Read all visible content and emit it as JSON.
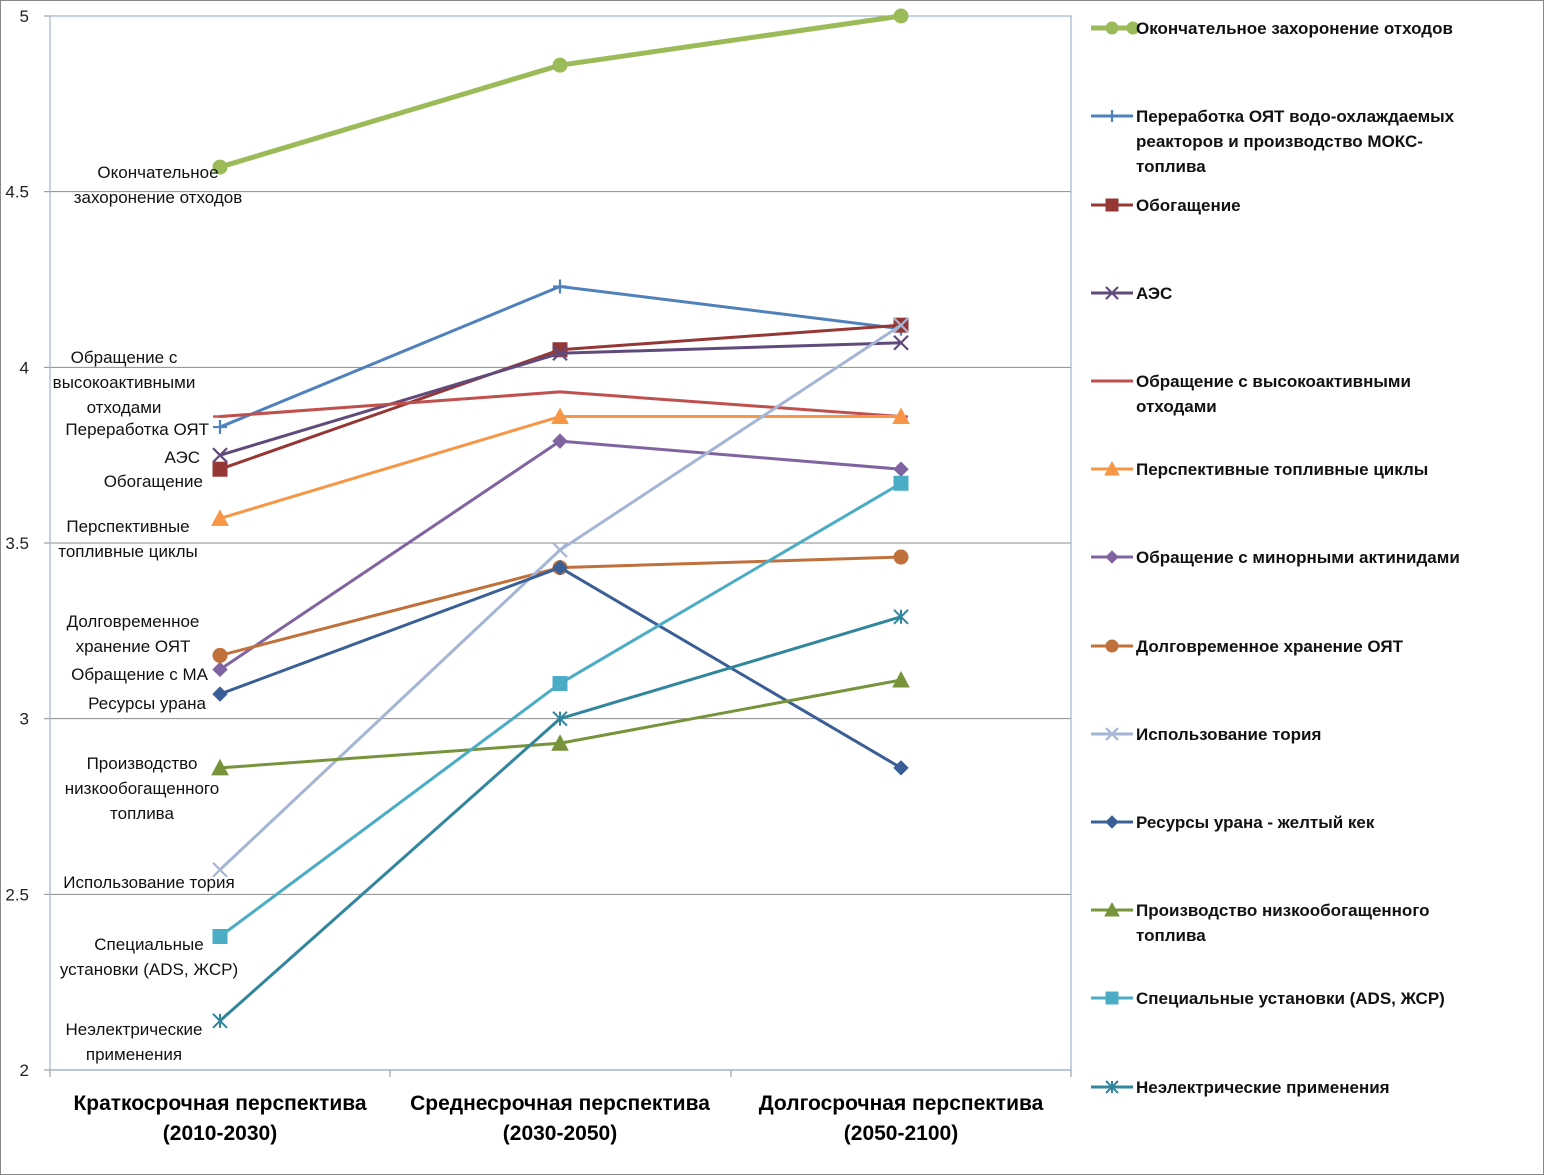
{
  "chart_data": {
    "type": "line",
    "categories": [
      [
        "Краткосрочная перспектива",
        "(2010-2030)"
      ],
      [
        "Среднесрочная перспектива",
        "(2030-2050)"
      ],
      [
        "Долгосрочная перспектива",
        "(2050-2100)"
      ]
    ],
    "ylim": [
      2,
      5
    ],
    "yticks": [
      "2",
      "2.5",
      "3",
      "3.5",
      "4",
      "4.5",
      "5"
    ],
    "grid": true,
    "legend_position": "right",
    "series": [
      {
        "name": [
          "Окончательное захоронение отходов"
        ],
        "values": [
          4.57,
          4.86,
          5.0
        ],
        "color": "#9BBB59",
        "marker": "circle",
        "width": 5
      },
      {
        "name": [
          "Переработка ОЯТ водо-охлаждаемых",
          "реакторов и производство МОКС-",
          "топлива"
        ],
        "values": [
          3.83,
          4.23,
          4.11
        ],
        "color": "#4F81BD",
        "marker": "plus",
        "width": 3
      },
      {
        "name": [
          "Обогащение"
        ],
        "values": [
          3.71,
          4.05,
          4.12
        ],
        "color": "#953735",
        "marker": "square",
        "width": 3
      },
      {
        "name": [
          "АЭС"
        ],
        "values": [
          3.75,
          4.04,
          4.07
        ],
        "color": "#604A7B",
        "marker": "x",
        "width": 3
      },
      {
        "name": [
          "Обращение с высокоактивными",
          "отходами"
        ],
        "values": [
          3.86,
          3.93,
          3.86
        ],
        "color": "#C0504D",
        "marker": "dash",
        "width": 3
      },
      {
        "name": [
          "Перспективные топливные циклы"
        ],
        "values": [
          3.57,
          3.86,
          3.86
        ],
        "color": "#F79646",
        "marker": "triangle",
        "width": 3
      },
      {
        "name": [
          "Обращение с минорными актинидами"
        ],
        "values": [
          3.14,
          3.79,
          3.71
        ],
        "color": "#8064A2",
        "marker": "diamond",
        "width": 3
      },
      {
        "name": [
          "Долговременное хранение ОЯТ"
        ],
        "values": [
          3.18,
          3.43,
          3.46
        ],
        "color": "#C0703A",
        "marker": "circle",
        "width": 3
      },
      {
        "name": [
          "Использование тория"
        ],
        "values": [
          2.57,
          3.48,
          4.12
        ],
        "color": "#A5B5D6",
        "marker": "x",
        "width": 3
      },
      {
        "name": [
          "Ресурсы урана - желтый кек"
        ],
        "values": [
          3.07,
          3.43,
          2.86
        ],
        "color": "#3A5F97",
        "marker": "diamond",
        "width": 3
      },
      {
        "name": [
          "Производство низкообогащенного",
          "топлива"
        ],
        "values": [
          2.86,
          2.93,
          3.11
        ],
        "color": "#77933C",
        "marker": "triangle",
        "width": 3
      },
      {
        "name": [
          "Специальные установки (ADS, ЖСР)"
        ],
        "values": [
          2.38,
          3.1,
          3.67
        ],
        "color": "#4BACC6",
        "marker": "square",
        "width": 3
      },
      {
        "name": [
          "Неэлектрические применения"
        ],
        "values": [
          2.14,
          3.0,
          3.29
        ],
        "color": "#31859C",
        "marker": "asterisk",
        "width": 3
      }
    ],
    "annotations": [
      {
        "lines": [
          "Окончательное",
          "захоронение отходов"
        ],
        "align": "center",
        "at_value": 4.57
      },
      {
        "lines": [
          "Обращение с",
          "высокоактивными",
          "отходами"
        ],
        "align": "center",
        "at_value": 3.86
      },
      {
        "lines": [
          "Переработка ОЯТ"
        ],
        "align": "end",
        "at_value": 3.83
      },
      {
        "lines": [
          "АЭС"
        ],
        "align": "end",
        "at_value": 3.75
      },
      {
        "lines": [
          "Обогащение"
        ],
        "align": "end",
        "at_value": 3.71
      },
      {
        "lines": [
          "Перспективные",
          "топливные циклы"
        ],
        "align": "center",
        "at_value": 3.57
      },
      {
        "lines": [
          "Долговременное",
          "хранение ОЯТ"
        ],
        "align": "center",
        "at_value": 3.18
      },
      {
        "lines": [
          "Обращение с МА"
        ],
        "align": "end",
        "at_value": 3.14
      },
      {
        "lines": [
          "Ресурсы урана"
        ],
        "align": "end",
        "at_value": 3.07
      },
      {
        "lines": [
          "Производство",
          "низкообогащенного",
          "топлива"
        ],
        "align": "center",
        "at_value": 2.86
      },
      {
        "lines": [
          "Использование тория"
        ],
        "align": "center",
        "at_value": 2.57
      },
      {
        "lines": [
          "Специальные",
          "установки (ADS, ЖСР)"
        ],
        "align": "center",
        "at_value": 2.38
      },
      {
        "lines": [
          "Неэлектрические",
          "применения"
        ],
        "align": "center",
        "at_value": 2.14
      }
    ]
  }
}
